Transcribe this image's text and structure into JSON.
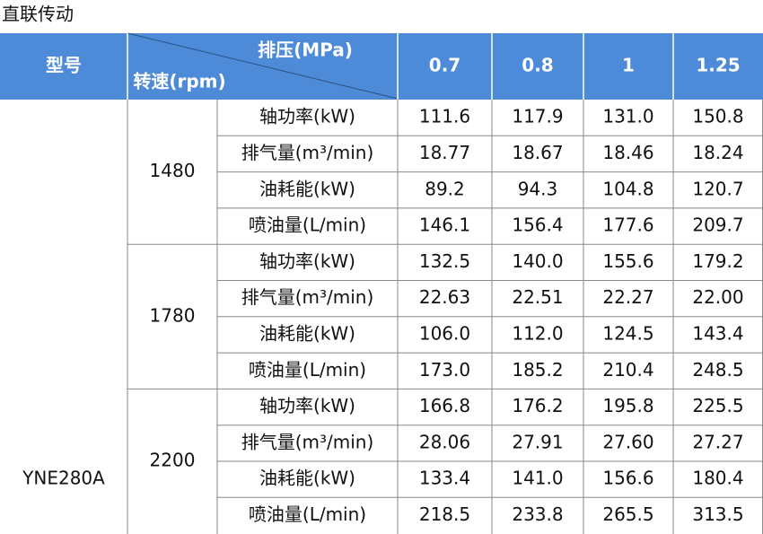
{
  "title": "直联传动",
  "table": {
    "header": {
      "model": "型号",
      "pressure": "排压(MPa)",
      "speed": "转速(rpm)",
      "pressures": [
        "0.7",
        "0.8",
        "1",
        "1.25"
      ]
    },
    "model": "YNE280A",
    "groups": [
      {
        "speed": "1480",
        "rows": [
          {
            "param": "轴功率(kW)",
            "values": [
              "111.6",
              "117.9",
              "131.0",
              "150.8"
            ]
          },
          {
            "param": "排气量(m³/min)",
            "values": [
              "18.77",
              "18.67",
              "18.46",
              "18.24"
            ]
          },
          {
            "param": "油耗能(kW)",
            "values": [
              "89.2",
              "94.3",
              "104.8",
              "120.7"
            ]
          },
          {
            "param": "喷油量(L/min)",
            "values": [
              "146.1",
              "156.4",
              "177.6",
              "209.7"
            ]
          }
        ]
      },
      {
        "speed": "1780",
        "rows": [
          {
            "param": "轴功率(kW)",
            "values": [
              "132.5",
              "140.0",
              "155.6",
              "179.2"
            ]
          },
          {
            "param": "排气量(m³/min)",
            "values": [
              "22.63",
              "22.51",
              "22.27",
              "22.00"
            ]
          },
          {
            "param": "油耗能(kW)",
            "values": [
              "106.0",
              "112.0",
              "124.5",
              "143.4"
            ]
          },
          {
            "param": "喷油量(L/min)",
            "values": [
              "173.0",
              "185.2",
              "210.4",
              "248.5"
            ]
          }
        ]
      },
      {
        "speed": "2200",
        "rows": [
          {
            "param": "轴功率(kW)",
            "values": [
              "166.8",
              "176.2",
              "195.8",
              "225.5"
            ]
          },
          {
            "param": "排气量(m³/min)",
            "values": [
              "28.06",
              "27.91",
              "27.60",
              "27.27"
            ]
          },
          {
            "param": "油耗能(kW)",
            "values": [
              "133.4",
              "141.0",
              "156.6",
              "180.4"
            ]
          },
          {
            "param": "喷油量(L/min)",
            "values": [
              "218.5",
              "233.8",
              "265.5",
              "313.5"
            ]
          }
        ]
      }
    ]
  }
}
